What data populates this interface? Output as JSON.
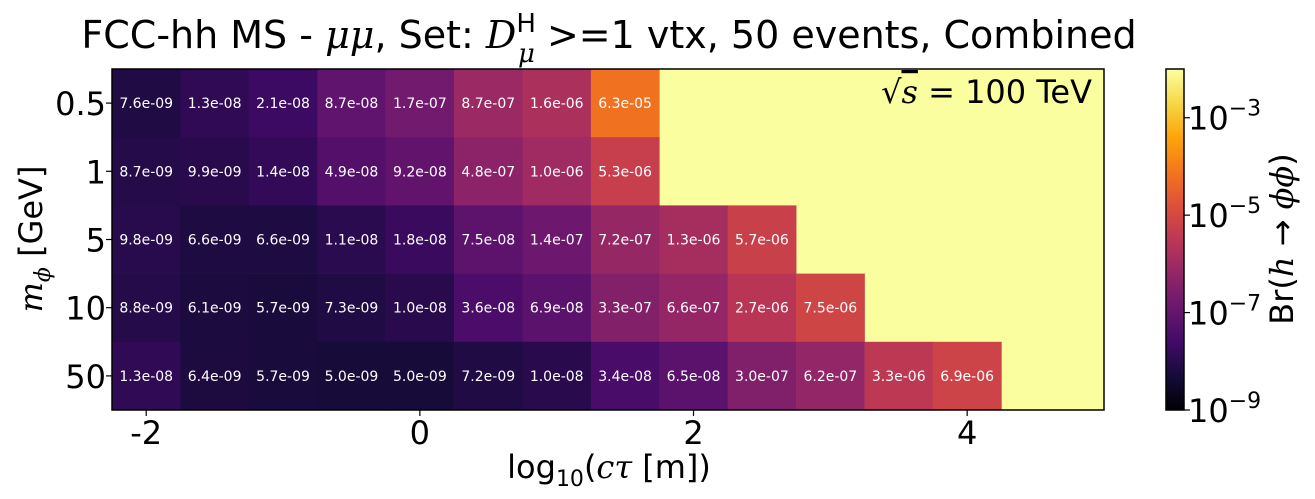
{
  "chart_data": {
    "type": "heatmap",
    "title": {
      "prefix": "FCC-hh MS - ",
      "mumu": "μμ",
      "set_part": ", Set: ",
      "D": "D",
      "D_sup": "H",
      "D_sub": "μ",
      "suffix": " >=1 vtx, 50 events, Combined"
    },
    "annotation": {
      "sqrt": "√",
      "s": "s",
      "rest": " = 100 TeV"
    },
    "xlabel": {
      "pre": "log",
      "sub": "10",
      "open": "(",
      "c": "c",
      "tau": "τ",
      "post": " [m])"
    },
    "ylabel": {
      "m": "m",
      "sub": "ϕ",
      "post": " [GeV]"
    },
    "colorbar_label": {
      "pre": "Br(",
      "h": "h",
      "arrow": " → ",
      "phi": "ϕϕ",
      "post": ")"
    },
    "x_range": [
      -2.25,
      5.0
    ],
    "x_ticks": [
      {
        "value": -2,
        "label": "-2"
      },
      {
        "value": 0,
        "label": "0"
      },
      {
        "value": 2,
        "label": "2"
      },
      {
        "value": 4,
        "label": "4"
      }
    ],
    "bin_width": 0.5,
    "bin_starts": [
      -2.25,
      -1.75,
      -1.25,
      -0.75,
      -0.25,
      0.25,
      0.75,
      1.25,
      1.75,
      2.25,
      2.75,
      3.25,
      3.75,
      4.25
    ],
    "y_categories": [
      "0.5",
      "1",
      "5",
      "10",
      "50"
    ],
    "colorbar": {
      "colormap": "inferno",
      "log_min": -9,
      "log_max": -2,
      "ticks": [
        {
          "exp": -9,
          "base": "10",
          "sup": "−9"
        },
        {
          "exp": -7,
          "base": "10",
          "sup": "−7"
        },
        {
          "exp": -5,
          "base": "10",
          "sup": "−5"
        },
        {
          "exp": -3,
          "base": "10",
          "sup": "−3"
        }
      ]
    },
    "empty_color": "#fbfe9f",
    "cells": [
      {
        "y": "0.5",
        "values": [
          "7.6e-09",
          "1.3e-08",
          "2.1e-08",
          "8.7e-08",
          "1.7e-07",
          "8.7e-07",
          "1.6e-06",
          "6.3e-05"
        ]
      },
      {
        "y": "1",
        "values": [
          "8.7e-09",
          "9.9e-09",
          "1.4e-08",
          "4.9e-08",
          "9.2e-08",
          "4.8e-07",
          "1.0e-06",
          "5.3e-06"
        ]
      },
      {
        "y": "5",
        "values": [
          "9.8e-09",
          "6.6e-09",
          "6.6e-09",
          "1.1e-08",
          "1.8e-08",
          "7.5e-08",
          "1.4e-07",
          "7.2e-07",
          "1.3e-06",
          "5.7e-06"
        ]
      },
      {
        "y": "10",
        "values": [
          "8.8e-09",
          "6.1e-09",
          "5.7e-09",
          "7.3e-09",
          "1.0e-08",
          "3.6e-08",
          "6.9e-08",
          "3.3e-07",
          "6.6e-07",
          "2.7e-06",
          "7.5e-06"
        ]
      },
      {
        "y": "50",
        "values": [
          "1.3e-08",
          "6.4e-09",
          "5.7e-09",
          "5.0e-09",
          "5.0e-09",
          "7.2e-09",
          "1.0e-08",
          "3.4e-08",
          "6.5e-08",
          "3.0e-07",
          "6.2e-07",
          "3.3e-06",
          "6.9e-06"
        ]
      }
    ]
  }
}
